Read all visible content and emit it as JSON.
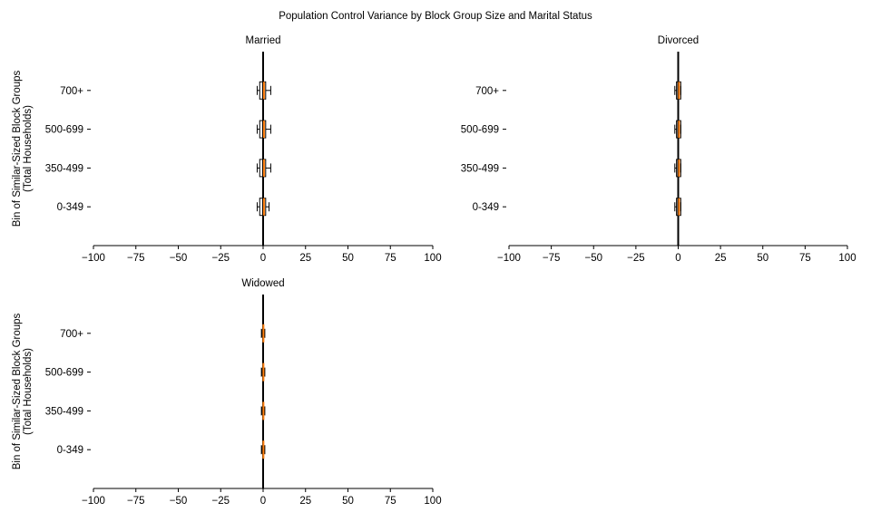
{
  "chart_data": {
    "type": "boxplot",
    "title": "Population Control Variance by Block Group Size and Marital Status",
    "ylabel_lines": [
      "Bin of Similar-Sized Block Groups",
      "(Total Households)"
    ],
    "categories": [
      "0-349",
      "350-499",
      "500-699",
      "700+"
    ],
    "xlim": [
      -100,
      100
    ],
    "xticks": [
      -100,
      -75,
      -50,
      -25,
      0,
      25,
      50,
      75,
      100
    ],
    "xtick_labels": [
      "−100",
      "−75",
      "−50",
      "−25",
      "0",
      "25",
      "50",
      "75",
      "100"
    ],
    "reference_line_x": 0,
    "colors": {
      "median": "#ff7f0e",
      "box": "#000000",
      "refline": "#000000"
    },
    "panels": [
      {
        "title": "Married",
        "boxes": [
          {
            "category": "0-349",
            "whislo": -3.5,
            "q1": -2,
            "median": 0.5,
            "q3": 1.5,
            "whishi": 3.5
          },
          {
            "category": "350-499",
            "whislo": -3.5,
            "q1": -2,
            "median": 0.5,
            "q3": 1.5,
            "whishi": 4.5
          },
          {
            "category": "500-699",
            "whislo": -3.5,
            "q1": -2,
            "median": 0.5,
            "q3": 1.5,
            "whishi": 4.5
          },
          {
            "category": "700+",
            "whislo": -3.5,
            "q1": -2,
            "median": 0.5,
            "q3": 1.5,
            "whishi": 4.5
          }
        ]
      },
      {
        "title": "Divorced",
        "boxes": [
          {
            "category": "0-349",
            "whislo": -2,
            "q1": -1,
            "median": 0.5,
            "q3": 1.5,
            "whishi": 1.5
          },
          {
            "category": "350-499",
            "whislo": -2,
            "q1": -1,
            "median": 0.5,
            "q3": 1.5,
            "whishi": 1.5
          },
          {
            "category": "500-699",
            "whislo": -2,
            "q1": -1,
            "median": 0.5,
            "q3": 1.5,
            "whishi": 1.5
          },
          {
            "category": "700+",
            "whislo": -2,
            "q1": -1,
            "median": 0.5,
            "q3": 1.5,
            "whishi": 1.5
          }
        ]
      },
      {
        "title": "Widowed",
        "boxes": [
          {
            "category": "0-349",
            "whislo": -1,
            "q1": -0.5,
            "median": 0.2,
            "q3": 0.5,
            "whishi": 1
          },
          {
            "category": "350-499",
            "whislo": -1,
            "q1": -0.5,
            "median": 0.2,
            "q3": 0.5,
            "whishi": 1
          },
          {
            "category": "500-699",
            "whislo": -1,
            "q1": -0.5,
            "median": 0.2,
            "q3": 0.5,
            "whishi": 1
          },
          {
            "category": "700+",
            "whislo": -1,
            "q1": -0.5,
            "median": 0.2,
            "q3": 0.5,
            "whishi": 1
          }
        ]
      }
    ]
  }
}
